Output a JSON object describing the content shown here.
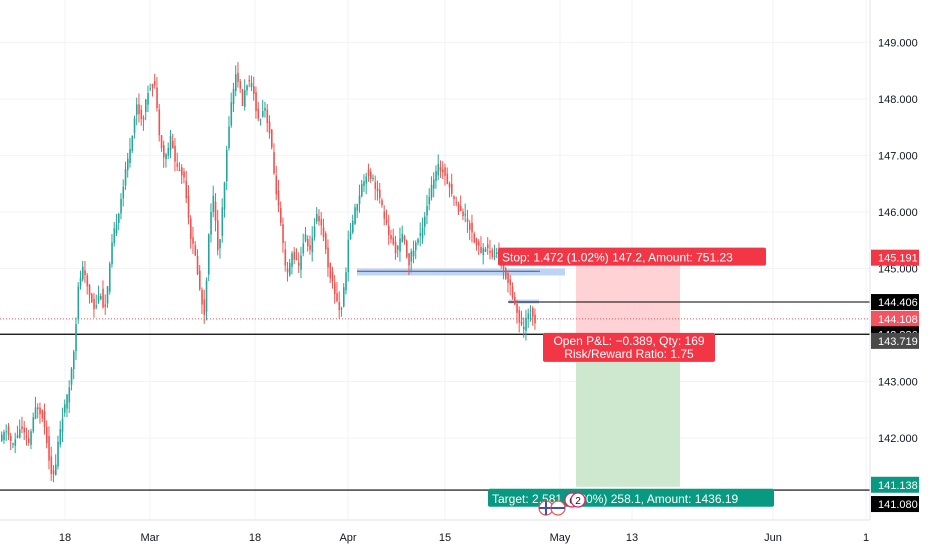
{
  "chart_data": {
    "type": "candlestick",
    "title": "",
    "xlabel": "",
    "ylabel": "",
    "ylim": [
      140.55,
      149.75
    ],
    "colors": {
      "up": "#26a69a",
      "down": "#ef5350",
      "stop_zone": "#ffcdd2",
      "target_zone": "#c8e6c9",
      "stop_label": "#f23645",
      "target_label": "#089981",
      "zone_band": "#b7cff5"
    },
    "y_ticks": [
      "149.000",
      "148.000",
      "147.000",
      "146.000",
      "145.000",
      "143.000",
      "142.000"
    ],
    "x_ticks": [
      "18",
      "Mar",
      "18",
      "Apr",
      "15",
      "May",
      "13",
      "Jun",
      "1"
    ],
    "key_levels": [
      {
        "label": "145.191",
        "value": 145.191,
        "style": "stop",
        "bg": "#f23645",
        "fg": "#ffffff"
      },
      {
        "label": "144.406",
        "value": 144.406,
        "style": "line",
        "bg": "#000000",
        "fg": "#ffffff"
      },
      {
        "label": "144.108",
        "value": 144.108,
        "style": "last",
        "bg": "#f7525f",
        "fg": "#ffffff"
      },
      {
        "label": "143.836",
        "value": 143.836,
        "style": "line",
        "bg": "#000000",
        "fg": "#ffffff"
      },
      {
        "label": "143.719",
        "value": 143.719,
        "style": "entry",
        "bg": "#4a4a4a",
        "fg": "#ffffff"
      },
      {
        "label": "141.138",
        "value": 141.138,
        "style": "target",
        "bg": "#089981",
        "fg": "#ffffff"
      },
      {
        "label": "141.080",
        "value": 141.08,
        "style": "line",
        "bg": "#000000",
        "fg": "#ffffff"
      }
    ],
    "position": {
      "entry": 143.719,
      "stop": 145.191,
      "target": 141.138,
      "stop_text": "Stop: 1.472 (1.02%) 147.2, Amount: 751.23",
      "target_text": "Target: 2.581 (1.80%) 258.1, Amount: 1436.19",
      "pnl_text": "Open P&L: −0.389, Qty: 169",
      "rr_text": "Risk/Reward Ratio: 1.75"
    },
    "events": [
      "6",
      "2"
    ],
    "series": [
      {
        "name": "",
        "points": [
          {
            "x": 0,
            "y": 141.9
          },
          {
            "x": 8,
            "y": 142.15
          },
          {
            "x": 14,
            "y": 141.85
          },
          {
            "x": 22,
            "y": 142.2
          },
          {
            "x": 30,
            "y": 141.9
          },
          {
            "x": 38,
            "y": 142.6
          },
          {
            "x": 44,
            "y": 142.4
          },
          {
            "x": 48,
            "y": 142.0
          },
          {
            "x": 52,
            "y": 141.45
          },
          {
            "x": 56,
            "y": 141.3
          },
          {
            "x": 60,
            "y": 142.0
          },
          {
            "x": 64,
            "y": 142.4
          },
          {
            "x": 70,
            "y": 142.8
          },
          {
            "x": 76,
            "y": 143.7
          },
          {
            "x": 80,
            "y": 144.7
          },
          {
            "x": 84,
            "y": 145.0
          },
          {
            "x": 90,
            "y": 144.6
          },
          {
            "x": 96,
            "y": 144.3
          },
          {
            "x": 102,
            "y": 144.6
          },
          {
            "x": 106,
            "y": 144.2
          },
          {
            "x": 110,
            "y": 144.8
          },
          {
            "x": 114,
            "y": 145.5
          },
          {
            "x": 120,
            "y": 146.0
          },
          {
            "x": 126,
            "y": 146.6
          },
          {
            "x": 132,
            "y": 147.2
          },
          {
            "x": 138,
            "y": 147.9
          },
          {
            "x": 144,
            "y": 147.6
          },
          {
            "x": 150,
            "y": 148.2
          },
          {
            "x": 156,
            "y": 148.3
          },
          {
            "x": 160,
            "y": 147.5
          },
          {
            "x": 166,
            "y": 146.9
          },
          {
            "x": 172,
            "y": 147.3
          },
          {
            "x": 178,
            "y": 146.8
          },
          {
            "x": 186,
            "y": 146.6
          },
          {
            "x": 192,
            "y": 145.6
          },
          {
            "x": 198,
            "y": 145.1
          },
          {
            "x": 202,
            "y": 144.5
          },
          {
            "x": 206,
            "y": 144.2
          },
          {
            "x": 210,
            "y": 145.5
          },
          {
            "x": 214,
            "y": 146.4
          },
          {
            "x": 220,
            "y": 145.2
          },
          {
            "x": 226,
            "y": 146.5
          },
          {
            "x": 230,
            "y": 147.5
          },
          {
            "x": 234,
            "y": 148.1
          },
          {
            "x": 238,
            "y": 148.5
          },
          {
            "x": 244,
            "y": 147.9
          },
          {
            "x": 248,
            "y": 148.3
          },
          {
            "x": 254,
            "y": 148.2
          },
          {
            "x": 260,
            "y": 147.6
          },
          {
            "x": 266,
            "y": 147.9
          },
          {
            "x": 272,
            "y": 147.3
          },
          {
            "x": 276,
            "y": 146.6
          },
          {
            "x": 282,
            "y": 145.8
          },
          {
            "x": 288,
            "y": 144.8
          },
          {
            "x": 294,
            "y": 145.3
          },
          {
            "x": 300,
            "y": 145.0
          },
          {
            "x": 306,
            "y": 145.6
          },
          {
            "x": 312,
            "y": 145.3
          },
          {
            "x": 318,
            "y": 146.0
          },
          {
            "x": 324,
            "y": 145.7
          },
          {
            "x": 330,
            "y": 145.0
          },
          {
            "x": 336,
            "y": 144.6
          },
          {
            "x": 342,
            "y": 144.2
          },
          {
            "x": 346,
            "y": 144.7
          },
          {
            "x": 350,
            "y": 145.5
          },
          {
            "x": 356,
            "y": 146.0
          },
          {
            "x": 362,
            "y": 146.4
          },
          {
            "x": 368,
            "y": 146.7
          },
          {
            "x": 374,
            "y": 146.6
          },
          {
            "x": 380,
            "y": 146.3
          },
          {
            "x": 386,
            "y": 145.9
          },
          {
            "x": 392,
            "y": 145.5
          },
          {
            "x": 398,
            "y": 145.3
          },
          {
            "x": 404,
            "y": 145.6
          },
          {
            "x": 410,
            "y": 145.1
          },
          {
            "x": 416,
            "y": 145.4
          },
          {
            "x": 422,
            "y": 145.6
          },
          {
            "x": 428,
            "y": 146.1
          },
          {
            "x": 434,
            "y": 146.5
          },
          {
            "x": 440,
            "y": 146.8
          },
          {
            "x": 446,
            "y": 146.7
          },
          {
            "x": 452,
            "y": 146.4
          },
          {
            "x": 458,
            "y": 146.1
          },
          {
            "x": 464,
            "y": 146.0
          },
          {
            "x": 470,
            "y": 145.8
          },
          {
            "x": 476,
            "y": 145.5
          },
          {
            "x": 482,
            "y": 145.3
          },
          {
            "x": 488,
            "y": 145.4
          },
          {
            "x": 494,
            "y": 145.2
          },
          {
            "x": 500,
            "y": 145.3
          },
          {
            "x": 506,
            "y": 144.9
          },
          {
            "x": 512,
            "y": 144.7
          },
          {
            "x": 516,
            "y": 144.4
          },
          {
            "x": 520,
            "y": 144.1
          },
          {
            "x": 524,
            "y": 143.9
          },
          {
            "x": 528,
            "y": 144.1
          },
          {
            "x": 532,
            "y": 144.3
          },
          {
            "x": 536,
            "y": 144.1
          }
        ]
      }
    ]
  }
}
